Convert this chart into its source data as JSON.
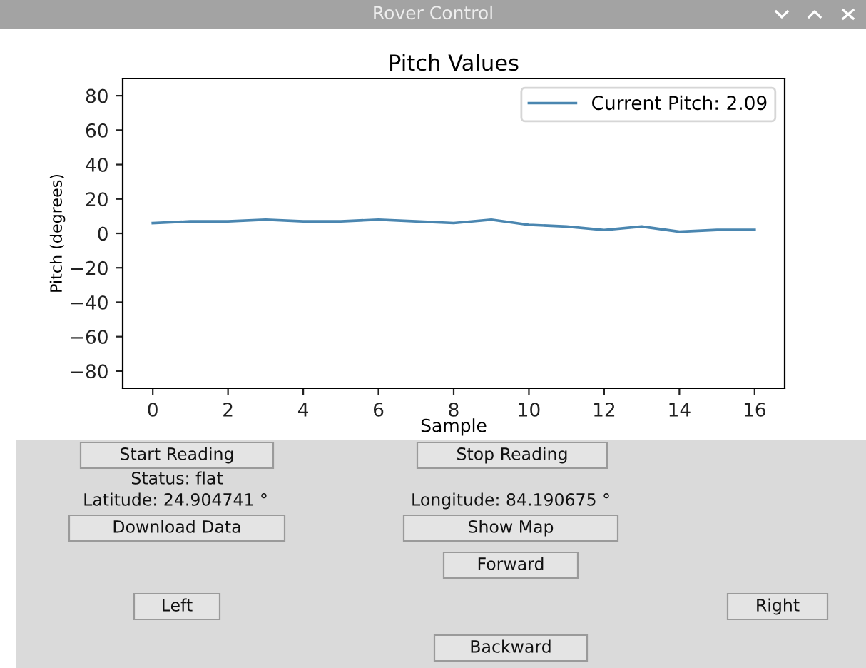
{
  "chart_data": [
    {
      "type": "line",
      "title": "Pitch Values",
      "xlabel": "Sample",
      "ylabel": "Pitch (degrees)",
      "x": [
        0,
        1,
        2,
        3,
        4,
        5,
        6,
        7,
        8,
        9,
        10,
        11,
        12,
        13,
        14,
        15,
        16
      ],
      "series": [
        {
          "name": "Current Pitch: 2.09",
          "color": "#4a86b0",
          "values": [
            6,
            7,
            7,
            8,
            7,
            7,
            8,
            7,
            6,
            8,
            5,
            4,
            2,
            4,
            1,
            2,
            2.09
          ]
        }
      ],
      "xlim": [
        -0.8,
        16.8
      ],
      "ylim": [
        -90,
        90
      ],
      "xticks": [
        0,
        2,
        4,
        6,
        8,
        10,
        12,
        14,
        16
      ],
      "yticks": [
        -80,
        -60,
        -40,
        -20,
        0,
        20,
        40,
        60,
        80
      ],
      "legend": "top right",
      "grid": false,
      "marker": "none",
      "line_style": "solid"
    },
    {
      "type": "other",
      "title": "Rover Control",
      "annotations": [
        "Start Reading",
        "Stop Reading",
        "Status: flat",
        "Latitude: 24.904741 °",
        "Longitude: 84.190675 °",
        "Download Data",
        "Show Map",
        "Forward",
        "Left",
        "Right",
        "Backward"
      ]
    }
  ]
}
